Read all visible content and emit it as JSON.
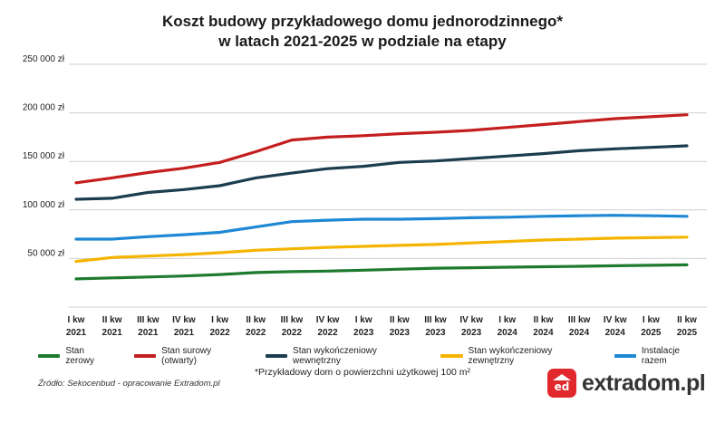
{
  "title_line1": "Koszt budowy przykładowego domu jednorodzinnego*",
  "title_line2": "w latach 2021-2025 w podziale na etapy",
  "footnote": "*Przykładowy dom o powierzchni użytkowej 100 m²",
  "source": "Źródło: Sekocenbud - opracowanie Extradom.pl",
  "logo": {
    "mark": "ed",
    "text": "extradom.pl",
    "accent": "#e1282d"
  },
  "chart_data": {
    "type": "line",
    "grid": true,
    "legend_placement": "bottom",
    "ylim": [
      0,
      250000
    ],
    "y_ticks": [
      {
        "value": 50000,
        "label": "50 000 zł"
      },
      {
        "value": 100000,
        "label": "100 000 zł"
      },
      {
        "value": 150000,
        "label": "150 000 zł"
      },
      {
        "value": 200000,
        "label": "200 000 zł"
      },
      {
        "value": 250000,
        "label": "250 000 zł"
      }
    ],
    "categories": [
      [
        "I kw",
        "2021"
      ],
      [
        "II kw",
        "2021"
      ],
      [
        "III kw",
        "2021"
      ],
      [
        "IV kw",
        "2021"
      ],
      [
        "I kw",
        "2022"
      ],
      [
        "II kw",
        "2022"
      ],
      [
        "III kw",
        "2022"
      ],
      [
        "IV kw",
        "2022"
      ],
      [
        "I kw",
        "2023"
      ],
      [
        "II kw",
        "2023"
      ],
      [
        "III kw",
        "2023"
      ],
      [
        "IV kw",
        "2023"
      ],
      [
        "I kw",
        "2024"
      ],
      [
        "II kw",
        "2024"
      ],
      [
        "III kw",
        "2024"
      ],
      [
        "IV kw",
        "2024"
      ],
      [
        "I kw",
        "2025"
      ],
      [
        "II kw",
        "2025"
      ]
    ],
    "series": [
      {
        "name": "Stan zerowy",
        "color": "#1e7a2e",
        "values": [
          29000,
          30000,
          31000,
          32000,
          33500,
          35500,
          36500,
          37000,
          38000,
          39000,
          40000,
          40500,
          41000,
          41500,
          42000,
          42500,
          43000,
          43500
        ]
      },
      {
        "name": "Stan surowy (otwarty)",
        "color": "#c41e1e",
        "values": [
          128000,
          133000,
          138500,
          143000,
          149000,
          160000,
          172000,
          175000,
          176500,
          178500,
          180000,
          182000,
          185000,
          188000,
          191000,
          194000,
          196000,
          198000
        ]
      },
      {
        "name": "Stan wykończeniowy wewnętrzny",
        "color": "#1c3d4f",
        "values": [
          111000,
          112000,
          118000,
          121000,
          125000,
          133000,
          138000,
          142500,
          145000,
          149000,
          150500,
          153000,
          155500,
          158000,
          161000,
          163000,
          164500,
          166000
        ]
      },
      {
        "name": "Stan wykończeniowy zewnętrzny",
        "color": "#f5b400",
        "values": [
          47000,
          51000,
          52500,
          54000,
          56000,
          58500,
          60000,
          61500,
          62500,
          63500,
          64500,
          66000,
          67500,
          69000,
          70000,
          71000,
          71500,
          72000
        ]
      },
      {
        "name": "Instalacje razem",
        "color": "#1e88d4",
        "values": [
          70000,
          70000,
          72500,
          74500,
          77000,
          82500,
          88000,
          89500,
          90500,
          90500,
          91000,
          92000,
          92500,
          93500,
          94000,
          94500,
          94000,
          93500
        ]
      }
    ]
  }
}
